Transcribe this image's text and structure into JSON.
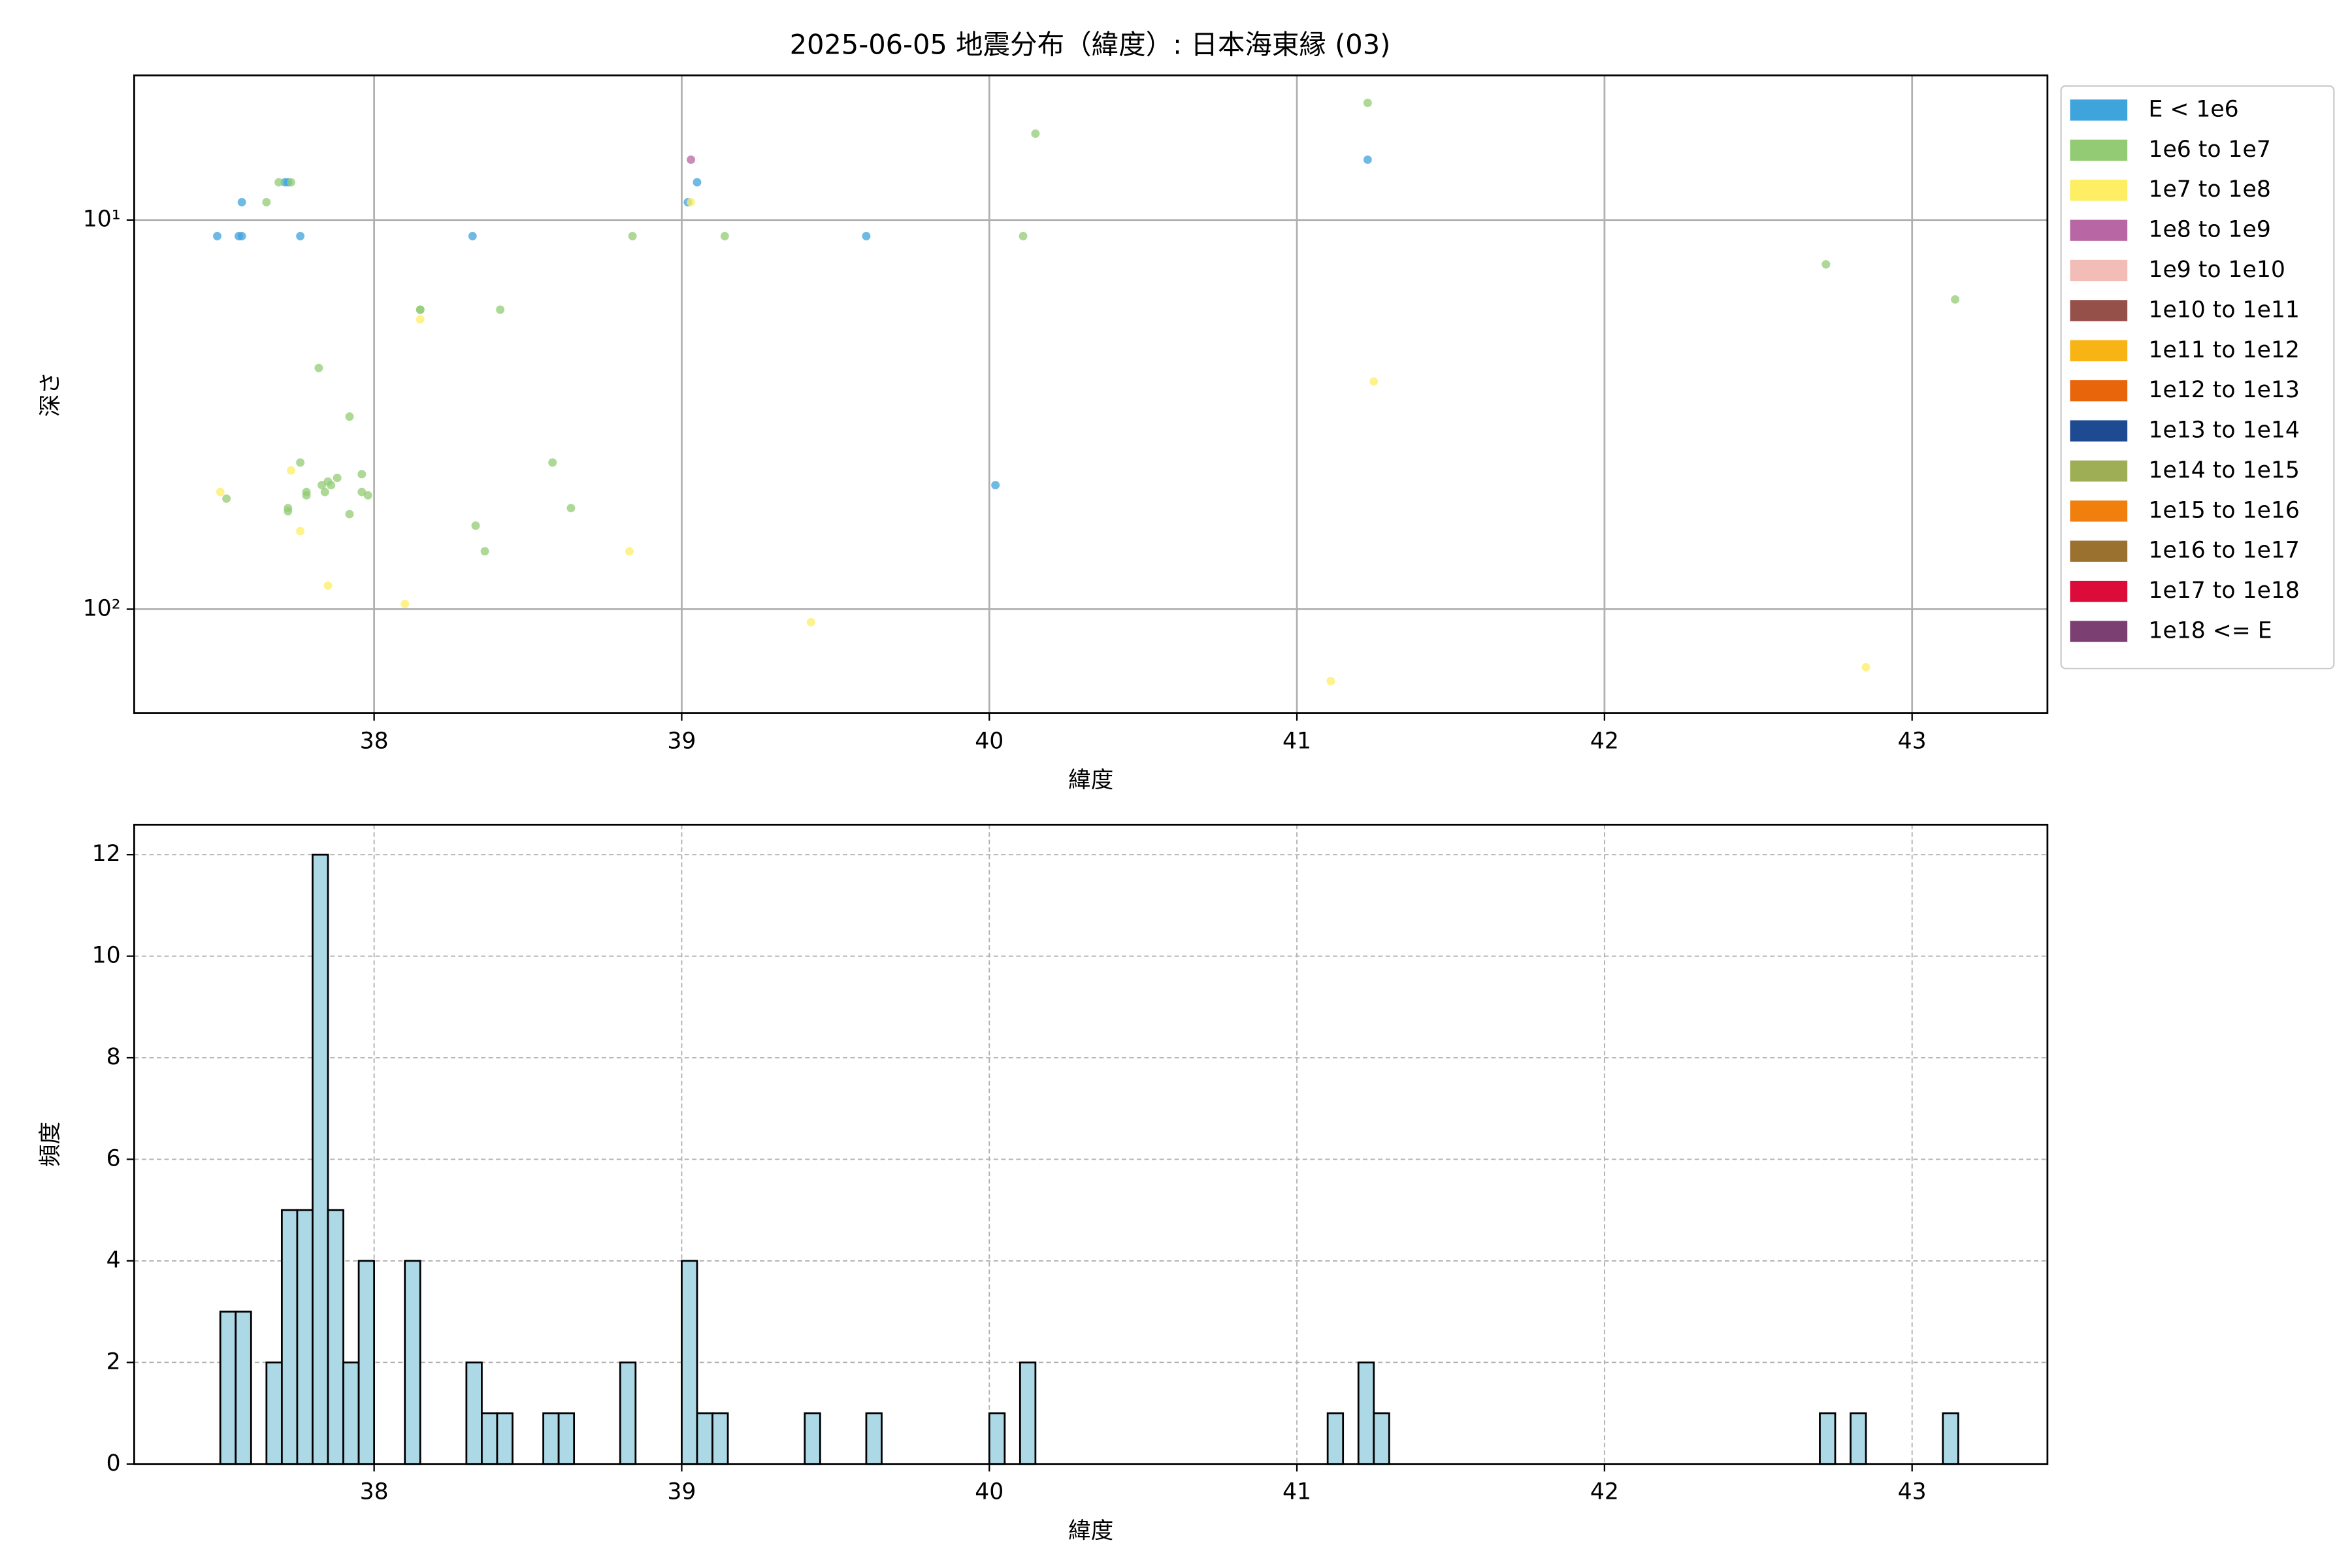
{
  "chart_data": [
    {
      "type": "scatter",
      "title": "2025-06-05 地震分布（緯度）: 日本海東縁 (03)",
      "xlabel": "緯度",
      "ylabel": "深さ",
      "xlim": [
        37.22,
        43.44
      ],
      "xticks": [
        38,
        39,
        40,
        41,
        42,
        43
      ],
      "yscale": "log",
      "ylim": [
        185,
        4.25
      ],
      "yticks": [
        {
          "value": 10,
          "label": "10¹"
        },
        {
          "value": 100,
          "label": "10²"
        }
      ],
      "grid": true,
      "legend": "outside upper right",
      "series": [
        {
          "name": "E < 1e6",
          "color": "#3fa3dc",
          "x": [
            37.49,
            37.56,
            37.57,
            37.57,
            37.71,
            37.72,
            37.76,
            38.32,
            39.02,
            39.05,
            39.6,
            40.02,
            41.23
          ],
          "values": [
            11,
            11,
            11,
            9,
            8,
            8,
            11,
            11,
            9,
            8,
            11,
            48,
            7
          ]
        },
        {
          "name": "1e6 to 1e7",
          "color": "#92cb73",
          "x": [
            37.52,
            37.65,
            37.69,
            37.73,
            37.72,
            37.72,
            37.76,
            37.78,
            37.78,
            37.82,
            37.83,
            37.85,
            37.84,
            37.86,
            37.88,
            37.92,
            37.92,
            37.96,
            37.96,
            37.98,
            38.15,
            38.15,
            38.41,
            38.58,
            38.33,
            38.64,
            38.36,
            38.84,
            39.14,
            40.11,
            40.15,
            41.23,
            42.72,
            43.14
          ],
          "values": [
            52,
            9,
            8,
            8,
            55,
            56,
            42,
            50,
            51,
            24,
            48,
            47,
            50,
            48,
            46,
            32,
            57,
            45,
            50,
            51,
            17,
            17,
            17,
            42,
            61,
            55,
            71,
            11,
            11,
            11,
            6,
            5,
            13,
            16
          ]
        },
        {
          "name": "1e7 to 1e8",
          "color": "#fdee63",
          "x": [
            37.5,
            37.73,
            37.76,
            37.85,
            38.1,
            38.15,
            38.83,
            39.03,
            39.42,
            41.11,
            41.25,
            42.85
          ],
          "values": [
            50,
            44,
            63,
            87,
            97,
            18,
            71,
            9,
            108,
            153,
            26,
            141
          ]
        },
        {
          "name": "1e8 to 1e9",
          "color": "#b866a4",
          "x": [
            39.03
          ],
          "values": [
            7
          ]
        },
        {
          "name": "1e9 to 1e10",
          "color": "#f2bcb7",
          "x": [],
          "values": []
        },
        {
          "name": "1e10 to 1e11",
          "color": "#96504a",
          "x": [],
          "values": []
        },
        {
          "name": "1e11 to 1e12",
          "color": "#f8b314",
          "x": [],
          "values": []
        },
        {
          "name": "1e12 to 1e13",
          "color": "#e9650c",
          "x": [],
          "values": []
        },
        {
          "name": "1e13 to 1e14",
          "color": "#1e4a91",
          "x": [],
          "values": []
        },
        {
          "name": "1e14 to 1e15",
          "color": "#9eae55",
          "x": [],
          "values": []
        },
        {
          "name": "1e15 to 1e16",
          "color": "#f07f0e",
          "x": [],
          "values": []
        },
        {
          "name": "1e16 to 1e17",
          "color": "#9b7130",
          "x": [],
          "values": []
        },
        {
          "name": "1e17 to 1e18",
          "color": "#dc0b3a",
          "x": [],
          "values": []
        },
        {
          "name": "1e18 <= E",
          "color": "#7b3f71",
          "x": [],
          "values": []
        }
      ]
    },
    {
      "type": "histogram",
      "xlabel": "緯度",
      "ylabel": "頻度",
      "color": "#add8e6",
      "edgecolor": "#000000",
      "xlim": [
        37.22,
        43.44
      ],
      "xticks": [
        38,
        39,
        40,
        41,
        42,
        43
      ],
      "ylim": [
        0,
        12.59
      ],
      "yticks": [
        0,
        2,
        4,
        6,
        8,
        10,
        12
      ],
      "grid": "dashed",
      "bins": [
        37.5,
        37.55,
        37.6,
        37.65,
        37.7,
        37.75,
        37.8,
        37.85,
        37.9,
        37.95,
        38,
        38.05,
        38.1,
        38.15,
        38.2,
        38.25,
        38.3,
        38.35,
        38.4,
        38.45,
        38.5,
        38.55,
        38.6,
        38.65,
        38.7,
        38.75,
        38.8,
        38.85,
        38.9,
        38.95,
        39,
        39.05,
        39.1,
        39.15,
        39.2,
        39.25,
        39.3,
        39.35,
        39.4,
        39.45,
        39.5,
        39.55,
        39.6,
        39.65,
        39.7,
        39.75,
        39.8,
        39.85,
        39.9,
        39.95,
        40,
        40.05,
        40.1,
        40.15,
        40.2,
        40.25,
        40.3,
        40.35,
        40.4,
        40.45,
        40.5,
        40.55,
        40.6,
        40.65,
        40.7,
        40.75,
        40.8,
        40.85,
        40.9,
        40.95,
        41,
        41.05,
        41.1,
        41.15,
        41.2,
        41.25,
        41.3,
        41.35,
        41.4,
        41.45,
        41.5,
        41.55,
        41.6,
        41.65,
        41.7,
        41.75,
        41.8,
        41.85,
        41.9,
        41.95,
        42,
        42.05,
        42.1,
        42.15,
        42.2,
        42.25,
        42.3,
        42.35,
        42.4,
        42.45,
        42.5,
        42.55,
        42.6,
        42.65,
        42.7,
        42.75,
        42.8,
        42.85,
        42.9,
        42.95,
        43,
        43.05,
        43.1,
        43.15
      ],
      "values": [
        3,
        3,
        0,
        2,
        5,
        5,
        12,
        5,
        2,
        4,
        0,
        0,
        4,
        0,
        0,
        0,
        2,
        1,
        1,
        0,
        0,
        1,
        1,
        0,
        0,
        0,
        2,
        0,
        0,
        0,
        4,
        1,
        1,
        0,
        0,
        0,
        0,
        0,
        1,
        0,
        0,
        0,
        1,
        0,
        0,
        0,
        0,
        0,
        0,
        0,
        1,
        0,
        2,
        0,
        0,
        0,
        0,
        0,
        0,
        0,
        0,
        0,
        0,
        0,
        0,
        0,
        0,
        0,
        0,
        0,
        0,
        0,
        1,
        0,
        2,
        1,
        0,
        0,
        0,
        0,
        0,
        0,
        0,
        0,
        0,
        0,
        0,
        0,
        0,
        0,
        0,
        0,
        0,
        0,
        0,
        0,
        0,
        0,
        0,
        0,
        0,
        0,
        0,
        0,
        1,
        0,
        1,
        0,
        0,
        0,
        0,
        0,
        1
      ]
    }
  ]
}
